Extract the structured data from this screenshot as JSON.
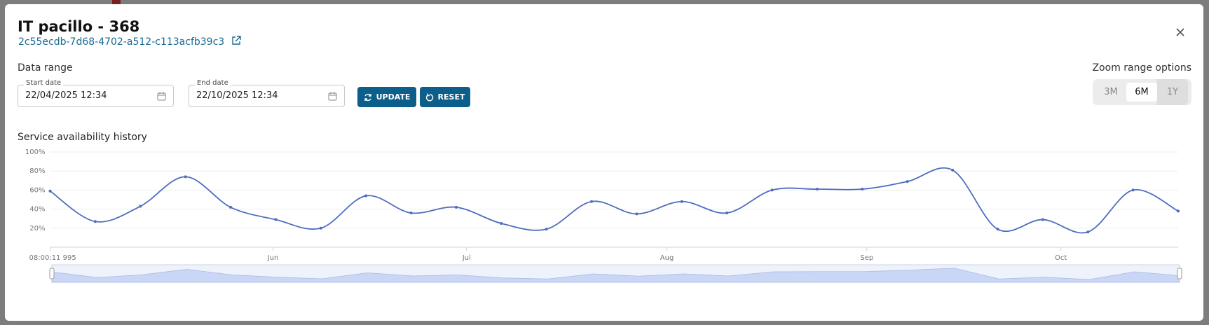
{
  "header": {
    "title": "IT pacillo - 368",
    "id": "2c55ecdb-7d68-4702-a512-c113acfb39c3"
  },
  "filters": {
    "label": "Data range",
    "start_label": "Start date",
    "start_value": "22/04/2025 12:34",
    "end_label": "End date",
    "end_value": "22/10/2025 12:34",
    "update": "UPDATE",
    "reset": "RESET"
  },
  "zoom": {
    "label": "Zoom range options",
    "options": [
      "3M",
      "6M",
      "1Y"
    ],
    "selected": 1
  },
  "chart_data": {
    "type": "line",
    "title": "Service availability history",
    "x": [
      0,
      1,
      2,
      3,
      4,
      5,
      6,
      7,
      8,
      9,
      10,
      11,
      12,
      13,
      14,
      15,
      16,
      17,
      18,
      19,
      20,
      21,
      22,
      23,
      24,
      25
    ],
    "values": [
      59,
      27,
      43,
      74,
      42,
      29,
      20,
      54,
      36,
      42,
      25,
      19,
      48,
      35,
      48,
      36,
      60,
      61,
      61,
      69,
      81,
      19,
      29,
      16,
      60,
      38
    ],
    "color": "#4f6dbf",
    "xlim": [
      0,
      25
    ],
    "xticks": [
      {
        "value": 0,
        "label": "08:00:11 995"
      },
      {
        "value": 4.94,
        "label": "Jun"
      },
      {
        "value": 9.23,
        "label": "Jul"
      },
      {
        "value": 13.67,
        "label": "Aug"
      },
      {
        "value": 18.1,
        "label": "Sep"
      },
      {
        "value": 22.4,
        "label": "Oct"
      }
    ],
    "ylim": [
      0,
      100
    ],
    "yticks": [
      {
        "value": 20,
        "label": "20%"
      },
      {
        "value": 40,
        "label": "40%"
      },
      {
        "value": 60,
        "label": "60%"
      },
      {
        "value": 80,
        "label": "80%"
      },
      {
        "value": 100,
        "label": "100%"
      }
    ],
    "grid": true
  }
}
